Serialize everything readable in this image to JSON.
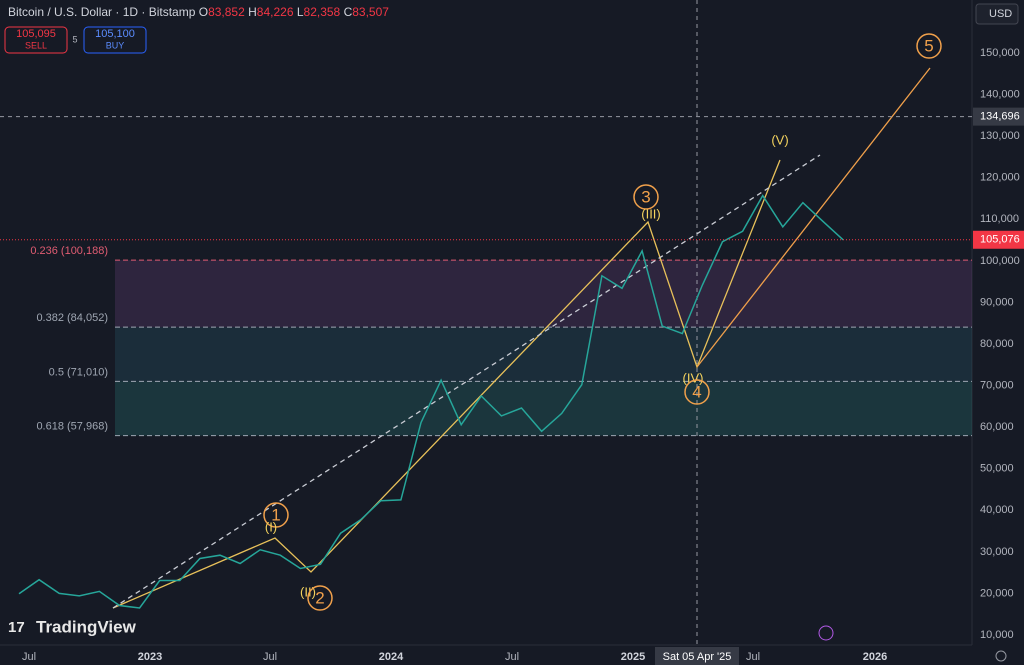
{
  "header": {
    "symbol": "Bitcoin / U.S. Dollar · 1D · Bitstamp",
    "o_key": "O",
    "o": "83,852",
    "h_key": "H",
    "h": "84,226",
    "l_key": "L",
    "l": "82,358",
    "c_key": "C",
    "c": "83,507"
  },
  "trade": {
    "sell_price": "105,095",
    "sell": "SELL",
    "spread": "5",
    "buy_price": "105,100",
    "buy": "BUY"
  },
  "currency": "USD",
  "price_axis": [
    {
      "value": 150000,
      "label": "150,000"
    },
    {
      "value": 140000,
      "label": "140,000"
    },
    {
      "value": 130000,
      "label": "130,000"
    },
    {
      "value": 120000,
      "label": "120,000"
    },
    {
      "value": 110000,
      "label": "110,000"
    },
    {
      "value": 100000,
      "label": "100,000"
    },
    {
      "value": 90000,
      "label": "90,000"
    },
    {
      "value": 80000,
      "label": "80,000"
    },
    {
      "value": 70000,
      "label": "70,000"
    },
    {
      "value": 60000,
      "label": "60,000"
    },
    {
      "value": 50000,
      "label": "50,000"
    },
    {
      "value": 40000,
      "label": "40,000"
    },
    {
      "value": 30000,
      "label": "30,000"
    },
    {
      "value": 20000,
      "label": "20,000"
    },
    {
      "value": 10000,
      "label": "10,000"
    }
  ],
  "crosshair_price": {
    "value": 134696,
    "label": "134,696"
  },
  "last_price": {
    "value": 105076,
    "label": "105,076"
  },
  "time_axis": [
    "Jul",
    "2023",
    "Jul",
    "2024",
    "Jul",
    "2025",
    "Jul",
    "2026"
  ],
  "crosshair_date": "Sat 05 Apr '25",
  "fib_levels": [
    {
      "value": 100188,
      "label": "0.236 (100,188)"
    },
    {
      "value": 84052,
      "label": "0.382 (84,052)"
    },
    {
      "value": 71010,
      "label": "0.5 (71,010)"
    },
    {
      "value": 57968,
      "label": "0.618 (57,968)"
    }
  ],
  "waves": [
    "1",
    "(I)",
    "(II)",
    "2",
    "3",
    "(III)",
    "(IV)",
    "4",
    "(V)",
    "5"
  ],
  "closes": [
    19900,
    23300,
    20000,
    19400,
    20500,
    17100,
    16500,
    23100,
    23100,
    28400,
    29200,
    27200,
    30500,
    29200,
    26000,
    27000,
    34500,
    37700,
    42300,
    42500,
    61100,
    71300,
    60600,
    67500,
    62700,
    64600,
    59000,
    63300,
    70200,
    96400,
    93400,
    102400,
    84300,
    82500,
    94200,
    104600,
    107100,
    115700,
    108200,
    114000,
    109500,
    105076
  ],
  "brand": "TradingView"
}
